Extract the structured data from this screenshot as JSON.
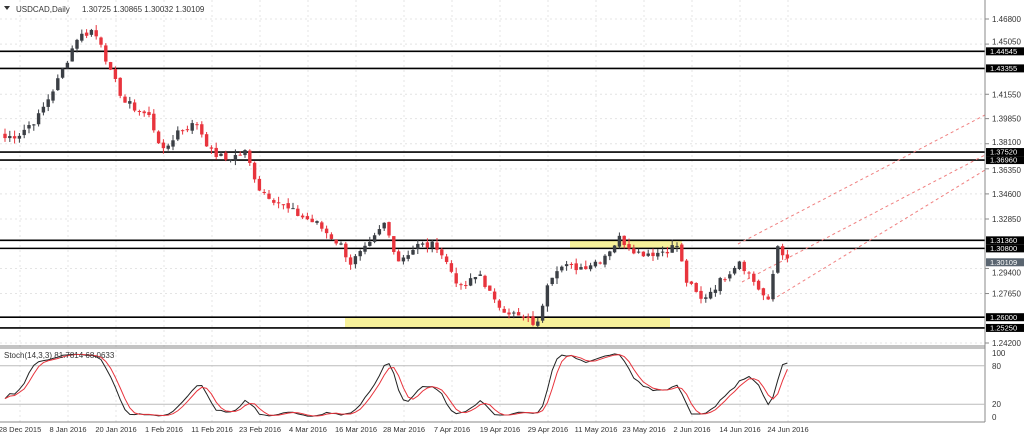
{
  "header": {
    "symbol": "USDCAD,Daily",
    "ohlc": "1.30725 1.30865 1.30032 1.30109"
  },
  "stoch_label": "Stoch(14,3,3) 81.7814 68.0633",
  "colors": {
    "bull": "#3b3f45",
    "bear": "#e8343d",
    "level": "#000000",
    "zone": "#f7f19a",
    "channel": "#f08080"
  },
  "chart_data": {
    "type": "candlestick",
    "title": "USDCAD,Daily",
    "price_ticks": [
      "1.46800",
      "1.45050",
      "1.41550",
      "1.39850",
      "1.38100",
      "1.36350",
      "1.34600",
      "1.32850",
      "1.29400",
      "1.27650",
      "1.24200"
    ],
    "price_tick_values": [
      1.468,
      1.4505,
      1.4155,
      1.3985,
      1.381,
      1.3635,
      1.346,
      1.3285,
      1.294,
      1.2765,
      1.242
    ],
    "ylim": [
      1.242,
      1.468
    ],
    "levels": [
      {
        "label": "1.44545",
        "v": 1.44545
      },
      {
        "label": "1.43355",
        "v": 1.43355
      },
      {
        "label": "1.37520",
        "v": 1.3752
      },
      {
        "label": "1.36960",
        "v": 1.3696
      },
      {
        "label": "1.31360",
        "v": 1.3136
      },
      {
        "label": "1.30800",
        "v": 1.308
      },
      {
        "label": "1.26000",
        "v": 1.26
      },
      {
        "label": "1.25250",
        "v": 1.2525
      }
    ],
    "current_price": "1.30109",
    "date_labels": [
      "28 Dec 2015",
      "8 Jan 2016",
      "20 Jan 2016",
      "1 Feb 2016",
      "11 Feb 2016",
      "23 Feb 2016",
      "4 Mar 2016",
      "16 Mar 2016",
      "28 Mar 2016",
      "7 Apr 2016",
      "19 Apr 2016",
      "29 Apr 2016",
      "11 May 2016",
      "23 May 2016",
      "2 Jun 2016",
      "14 Jun 2016",
      "24 Jun 2016"
    ],
    "close_path": [
      [
        0,
        1.385
      ],
      [
        3,
        1.388
      ],
      [
        7,
        1.4
      ],
      [
        11,
        1.425
      ],
      [
        15,
        1.455
      ],
      [
        18,
        1.46
      ],
      [
        20,
        1.452
      ],
      [
        22,
        1.43
      ],
      [
        25,
        1.41
      ],
      [
        30,
        1.4
      ],
      [
        33,
        1.375
      ],
      [
        36,
        1.39
      ],
      [
        40,
        1.395
      ],
      [
        43,
        1.375
      ],
      [
        46,
        1.37
      ],
      [
        50,
        1.375
      ],
      [
        53,
        1.35
      ],
      [
        59,
        1.335
      ],
      [
        65,
        1.325
      ],
      [
        70,
        1.31
      ],
      [
        72,
        1.298
      ],
      [
        76,
        1.31
      ],
      [
        79,
        1.325
      ],
      [
        82,
        1.3
      ],
      [
        86,
        1.31
      ],
      [
        90,
        1.31
      ],
      [
        95,
        1.28
      ],
      [
        99,
        1.29
      ],
      [
        102,
        1.27
      ],
      [
        107,
        1.26
      ],
      [
        111,
        1.255
      ],
      [
        113,
        1.285
      ],
      [
        115,
        1.295
      ],
      [
        120,
        1.295
      ],
      [
        124,
        1.3
      ],
      [
        128,
        1.315
      ],
      [
        132,
        1.305
      ],
      [
        136,
        1.305
      ],
      [
        140,
        1.31
      ],
      [
        142,
        1.285
      ],
      [
        145,
        1.272
      ],
      [
        149,
        1.285
      ],
      [
        153,
        1.3
      ],
      [
        157,
        1.28
      ],
      [
        159,
        1.27
      ],
      [
        161,
        1.31
      ],
      [
        163,
        1.301
      ]
    ],
    "stoch": {
      "params": "14,3,3",
      "k": 81.7814,
      "d": 68.0633,
      "levels": [
        {
          "label": "100",
          "v": 100
        },
        {
          "label": "80",
          "v": 80
        },
        {
          "label": "20",
          "v": 20
        },
        {
          "label": "0",
          "v": 0
        }
      ]
    }
  }
}
